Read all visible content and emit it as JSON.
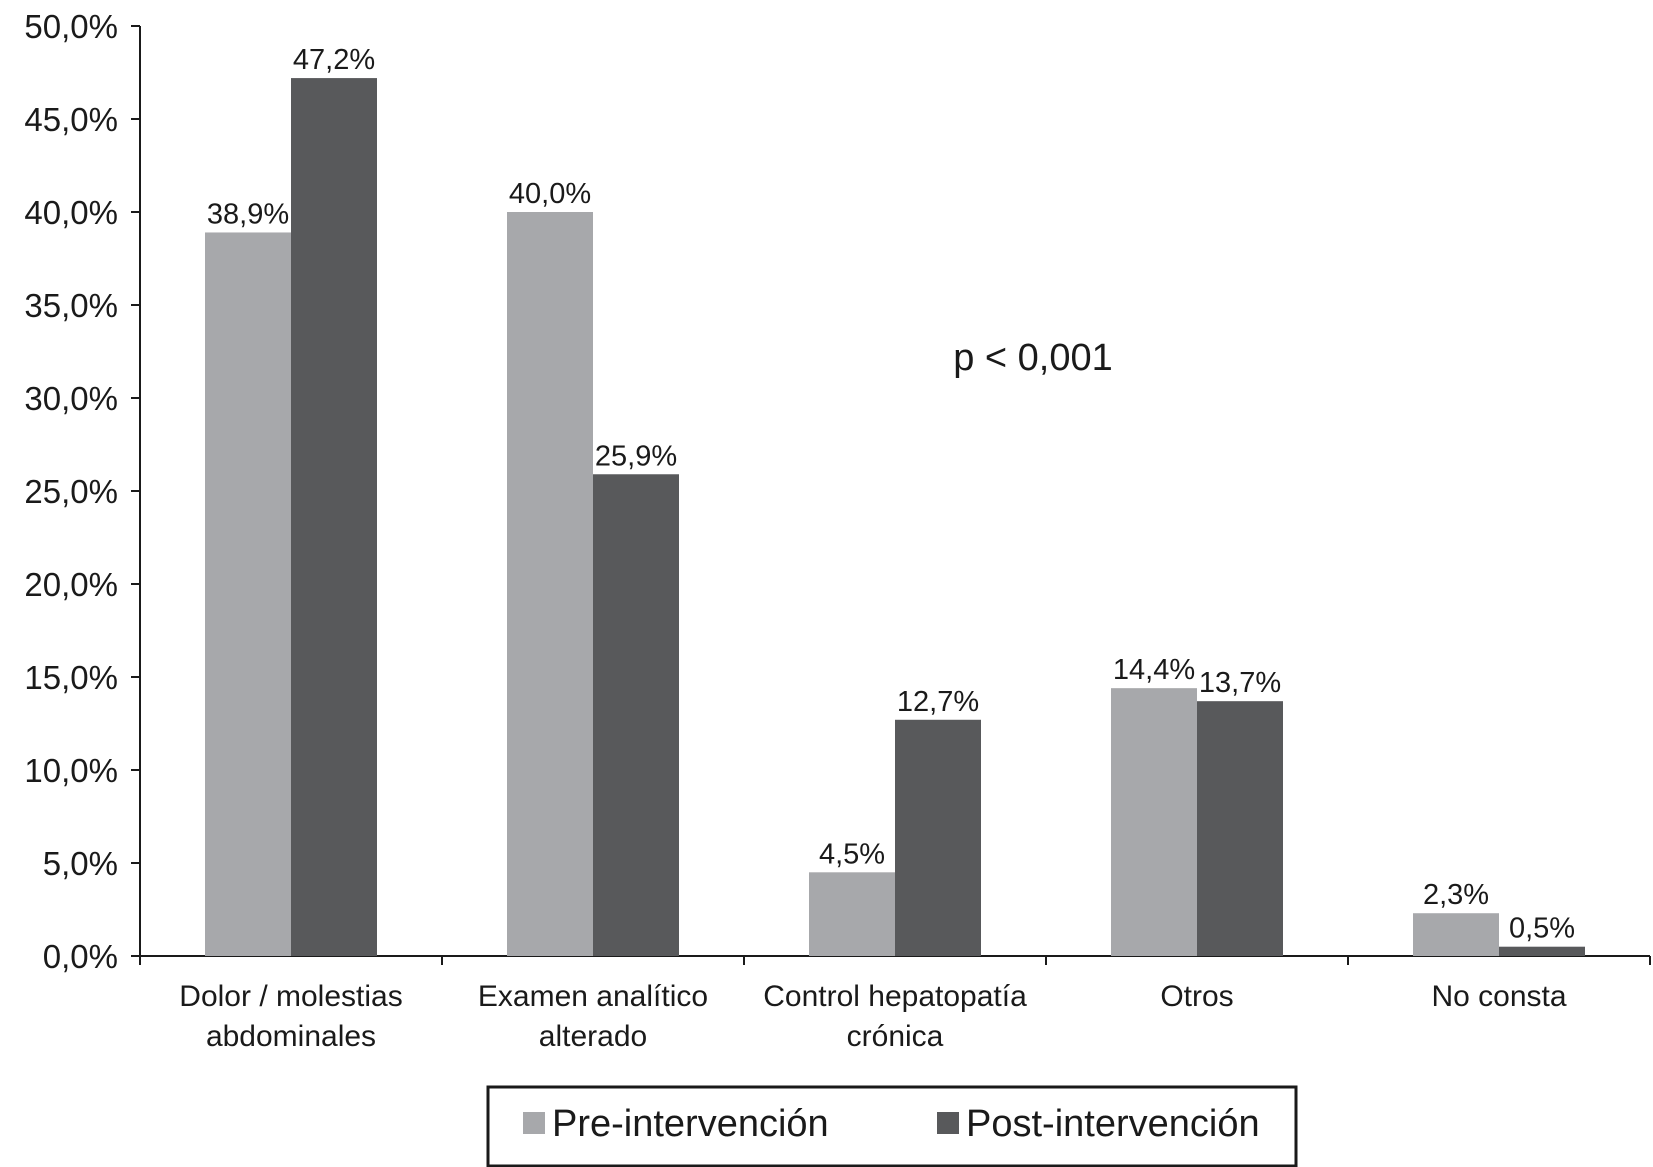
{
  "chart_data": {
    "type": "bar",
    "categories": [
      [
        "Dolor / molestias",
        "abdominales"
      ],
      [
        "Examen analítico",
        "alterado"
      ],
      [
        "Control hepatopatía",
        "crónica"
      ],
      [
        "Otros"
      ],
      [
        "No consta"
      ]
    ],
    "series": [
      {
        "name": "Pre-intervención",
        "color": "#a7a8ab",
        "values": [
          38.9,
          40.0,
          4.5,
          14.4,
          2.3
        ],
        "labels": [
          "38,9%",
          "40,0%",
          "4,5%",
          "14,4%",
          "2,3%"
        ]
      },
      {
        "name": "Post-intervención",
        "color": "#58595b",
        "values": [
          47.2,
          25.9,
          12.7,
          13.7,
          0.5
        ],
        "labels": [
          "47,2%",
          "25,9%",
          "12,7%",
          "13,7%",
          "0,5%"
        ]
      }
    ],
    "ylim": [
      0,
      50
    ],
    "ytick_step": 5,
    "yticks": [
      "0,0%",
      "5,0%",
      "10,0%",
      "15,0%",
      "20,0%",
      "25,0%",
      "30,0%",
      "35,0%",
      "40,0%",
      "45,0%",
      "50,0%"
    ],
    "annotation": "p < 0,001",
    "legend_position": "bottom",
    "grid": false,
    "title": "",
    "xlabel": "",
    "ylabel": ""
  }
}
